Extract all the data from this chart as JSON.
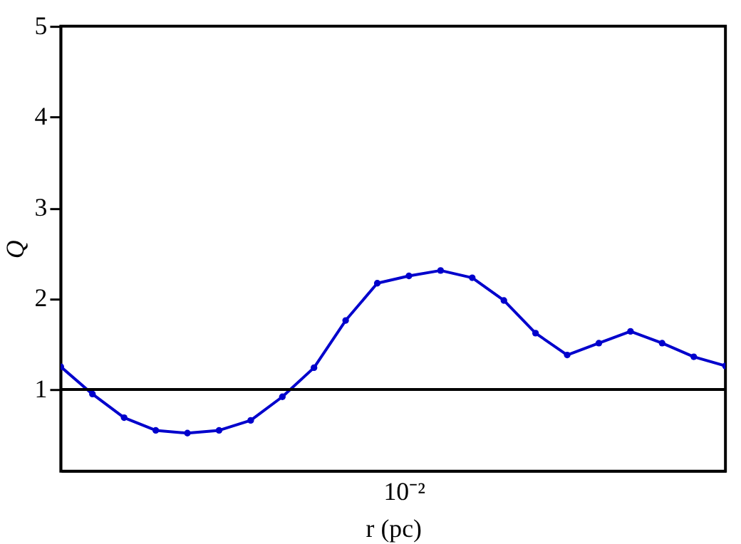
{
  "chart_data": {
    "type": "line",
    "xlabel": "r (pc)",
    "ylabel": "Q",
    "categories": [
      null,
      null,
      null,
      null,
      null,
      null,
      null,
      null,
      null,
      null,
      null,
      null,
      null,
      null,
      null,
      null,
      null,
      null,
      null,
      null,
      null,
      null
    ],
    "series": [
      {
        "color": "#0000cc",
        "values": [
          1.25,
          0.95,
          0.69,
          0.55,
          0.52,
          0.55,
          0.66,
          0.92,
          1.24,
          1.76,
          2.17,
          2.25,
          2.31,
          2.23,
          1.98,
          1.62,
          1.38,
          1.51,
          1.64,
          1.51,
          1.36,
          1.26
        ]
      }
    ],
    "ylim": [
      0.1,
      5
    ],
    "yticks": [
      1,
      2,
      3,
      4,
      5
    ],
    "annotations": [
      "10⁻²"
    ],
    "ref_lines": [
      {
        "axis": "y",
        "value": 1,
        "color": "#000000",
        "line_style": "solid"
      }
    ],
    "marker": "circle",
    "line_style": "solid",
    "grid": false
  }
}
